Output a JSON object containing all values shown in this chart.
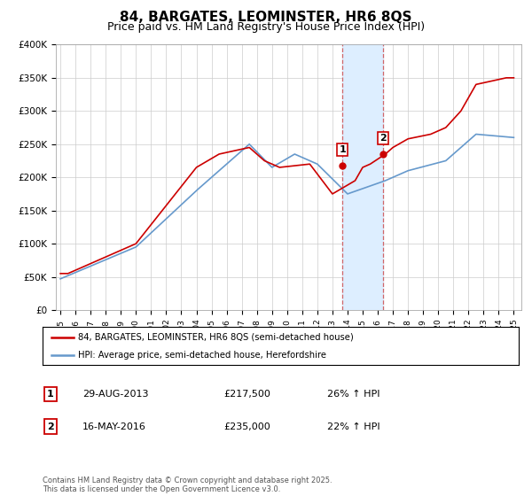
{
  "title": "84, BARGATES, LEOMINSTER, HR6 8QS",
  "subtitle": "Price paid vs. HM Land Registry's House Price Index (HPI)",
  "title_fontsize": 11,
  "subtitle_fontsize": 9,
  "ylim": [
    0,
    400000
  ],
  "yticks": [
    0,
    50000,
    100000,
    150000,
    200000,
    250000,
    300000,
    350000,
    400000
  ],
  "ytick_labels": [
    "£0",
    "£50K",
    "£100K",
    "£150K",
    "£200K",
    "£250K",
    "£300K",
    "£350K",
    "£400K"
  ],
  "sale1_date": 2013.66,
  "sale1_price": 217500,
  "sale1_label": "1",
  "sale1_text": "29-AUG-2013",
  "sale1_price_str": "£217,500",
  "sale1_pct": "26% ↑ HPI",
  "sale2_date": 2016.37,
  "sale2_price": 235000,
  "sale2_label": "2",
  "sale2_text": "16-MAY-2016",
  "sale2_price_str": "£235,000",
  "sale2_pct": "22% ↑ HPI",
  "red_color": "#cc0000",
  "blue_color": "#6699cc",
  "shade_color": "#ddeeff",
  "legend1": "84, BARGATES, LEOMINSTER, HR6 8QS (semi-detached house)",
  "legend2": "HPI: Average price, semi-detached house, Herefordshire",
  "footnote": "Contains HM Land Registry data © Crown copyright and database right 2025.\nThis data is licensed under the Open Government Licence v3.0."
}
